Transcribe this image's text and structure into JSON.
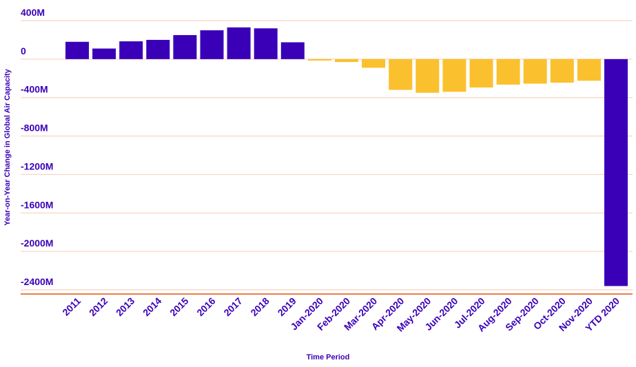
{
  "chart_data": {
    "type": "bar",
    "title": "",
    "xlabel": "Time Period",
    "ylabel": "Year-on-Year Change in Global Air Capacity",
    "ylim": [
      -2400,
      400
    ],
    "yticks": [
      400,
      0,
      -400,
      -800,
      -1200,
      -1600,
      -2000,
      -2400
    ],
    "ytick_labels": [
      "400M",
      "0",
      "-400M",
      "-800M",
      "-1200M",
      "-1600M",
      "-2000M",
      "-2400M"
    ],
    "grid": true,
    "categories": [
      "2011",
      "2012",
      "2013",
      "2014",
      "2015",
      "2016",
      "2017",
      "2018",
      "2019",
      "Jan-2020",
      "Feb-2020",
      "Mar-2020",
      "Apr-2020",
      "May-2020",
      "Jun-2020",
      "Jul-2020",
      "Aug-2020",
      "Sep-2020",
      "Oct-2020",
      "Nov-2020",
      "YTD 2020"
    ],
    "values": [
      180,
      110,
      185,
      200,
      250,
      300,
      330,
      320,
      175,
      -15,
      -30,
      -90,
      -320,
      -350,
      -340,
      -295,
      -265,
      -255,
      -245,
      -225,
      -2360
    ],
    "bar_colors": [
      "#3a00b8",
      "#3a00b8",
      "#3a00b8",
      "#3a00b8",
      "#3a00b8",
      "#3a00b8",
      "#3a00b8",
      "#3a00b8",
      "#3a00b8",
      "#fbc02d",
      "#fbc02d",
      "#fbc02d",
      "#fbc02d",
      "#fbc02d",
      "#fbc02d",
      "#fbc02d",
      "#fbc02d",
      "#fbc02d",
      "#fbc02d",
      "#fbc02d",
      "#3a00b8"
    ],
    "colors": {
      "text": "#3a00b8",
      "gridline": "#f5cbb6",
      "baseline": "#e8804a"
    }
  }
}
